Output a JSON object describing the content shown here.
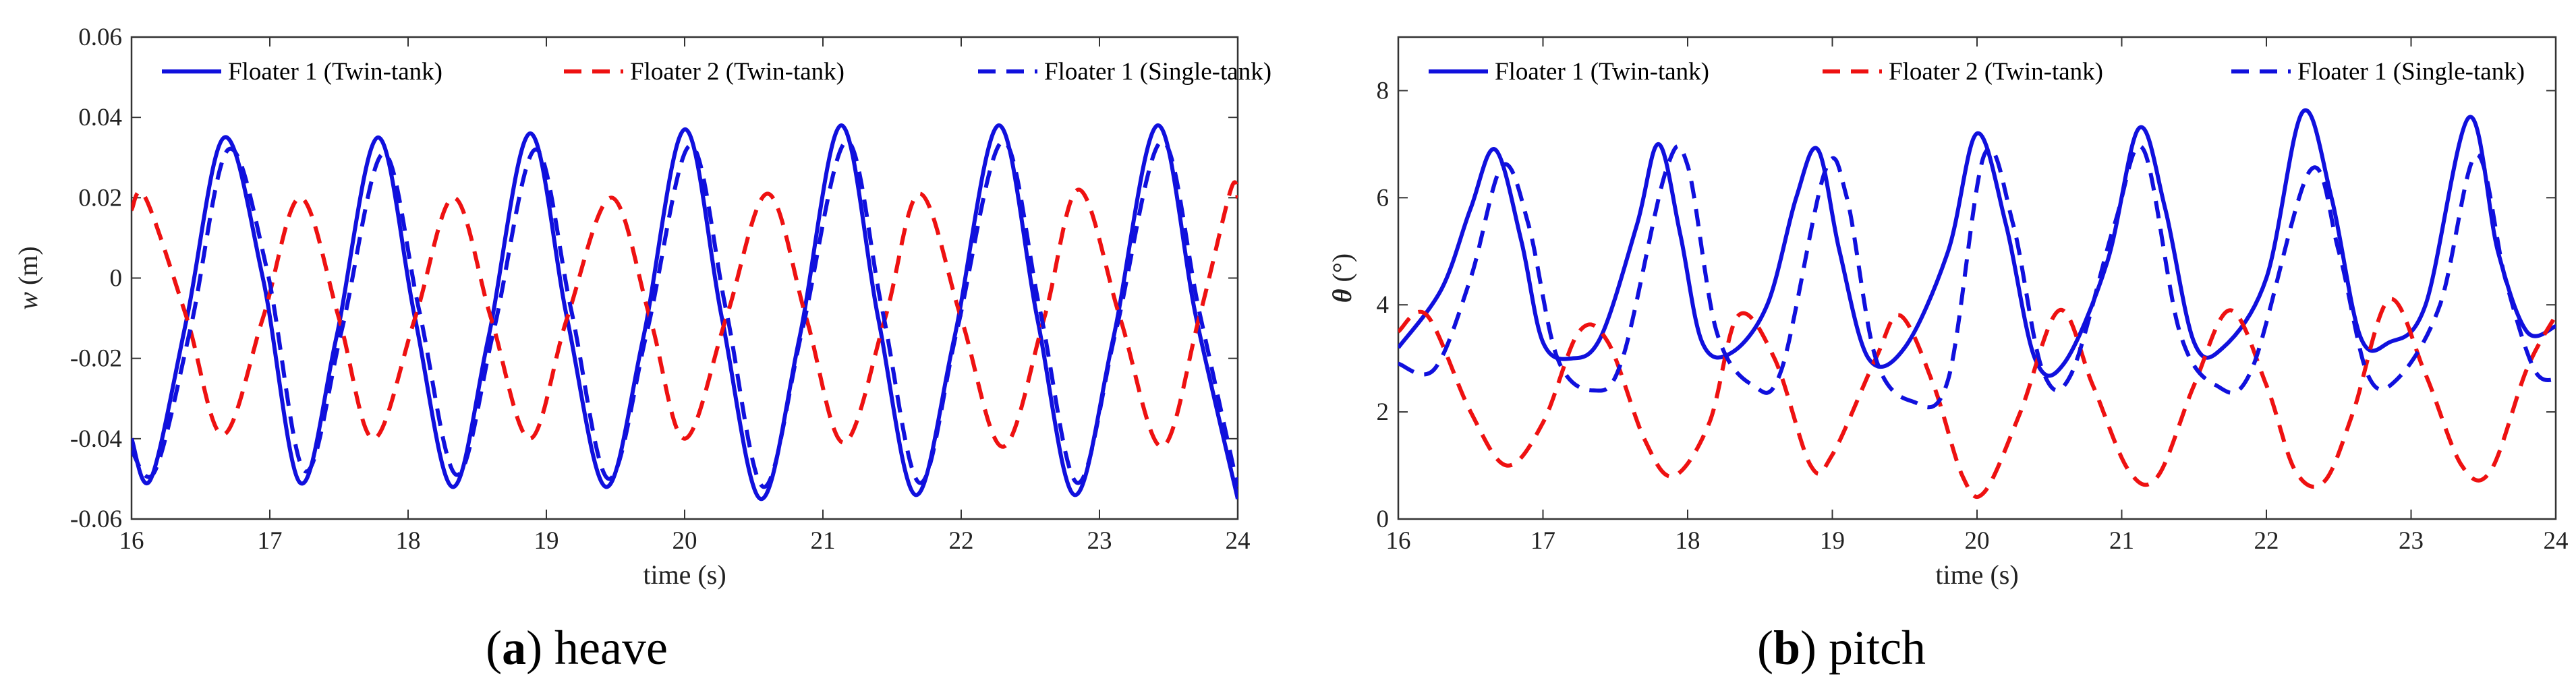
{
  "series_styles": [
    {
      "color": "#1010dd",
      "dash": "solid"
    },
    {
      "color": "#ee1111",
      "dash": "dashed"
    },
    {
      "color": "#1010dd",
      "dash": "dashed"
    }
  ],
  "chart_data": [
    {
      "type": "line",
      "id": "a",
      "caption_letter": "a",
      "caption_text": "heave",
      "xlabel": "time (s)",
      "ylabel_italic": "w",
      "ylabel_unit": "(m)",
      "xlim": [
        16,
        24
      ],
      "ylim": [
        -0.06,
        0.06
      ],
      "xticks": [
        16,
        17,
        18,
        19,
        20,
        21,
        22,
        23,
        24
      ],
      "yticks": [
        -0.06,
        -0.04,
        -0.02,
        0,
        0.02,
        0.04,
        0.06
      ],
      "ytick_labels": [
        "-0.06",
        "-0.04",
        "-0.02",
        "0",
        "0.02",
        "0.04",
        "0.06"
      ],
      "legend": [
        "Floater 1 (Twin-tank)",
        "Floater 2 (Twin-tank)",
        "Floater 1 (Single-tank)"
      ],
      "series": [
        {
          "name": "Floater 1 (Twin-tank)",
          "x": [
            16.0,
            16.14,
            16.4,
            16.67,
            16.95,
            17.22,
            17.48,
            17.78,
            18.05,
            18.32,
            18.58,
            18.88,
            19.15,
            19.43,
            19.7,
            20.0,
            20.27,
            20.55,
            20.83,
            21.13,
            21.4,
            21.67,
            21.95,
            22.27,
            22.55,
            22.82,
            23.1,
            23.42,
            23.7,
            24.0
          ],
          "y": [
            -0.04,
            -0.05,
            -0.01,
            0.035,
            0.0,
            -0.051,
            -0.015,
            0.035,
            -0.01,
            -0.052,
            -0.015,
            0.036,
            -0.01,
            -0.052,
            -0.015,
            0.037,
            -0.01,
            -0.055,
            -0.015,
            0.038,
            -0.01,
            -0.054,
            -0.015,
            0.038,
            -0.01,
            -0.054,
            -0.015,
            0.038,
            -0.01,
            -0.055
          ]
        },
        {
          "name": "Floater 2 (Twin-tank)",
          "x": [
            16.0,
            16.1,
            16.4,
            16.66,
            16.95,
            17.22,
            17.5,
            17.75,
            18.05,
            18.33,
            18.6,
            18.88,
            19.15,
            19.47,
            19.75,
            20.0,
            20.3,
            20.6,
            20.88,
            21.15,
            21.45,
            21.7,
            22.0,
            22.3,
            22.6,
            22.85,
            23.15,
            23.45,
            23.72,
            23.95,
            24.0
          ],
          "y": [
            0.017,
            0.02,
            -0.01,
            -0.039,
            -0.01,
            0.02,
            -0.01,
            -0.04,
            -0.01,
            0.02,
            -0.01,
            -0.04,
            -0.01,
            0.02,
            -0.01,
            -0.04,
            -0.01,
            0.021,
            -0.01,
            -0.041,
            -0.01,
            0.021,
            -0.01,
            -0.042,
            -0.01,
            0.022,
            -0.01,
            -0.042,
            -0.01,
            0.022,
            0.02
          ]
        },
        {
          "name": "Floater 1 (Single-tank)",
          "x": [
            16.0,
            16.17,
            16.43,
            16.7,
            16.98,
            17.25,
            17.52,
            17.82,
            18.08,
            18.35,
            18.62,
            18.92,
            19.18,
            19.45,
            19.73,
            20.04,
            20.3,
            20.57,
            20.85,
            21.17,
            21.43,
            21.7,
            21.97,
            22.3,
            22.57,
            22.84,
            23.12,
            23.45,
            23.72,
            24.0
          ],
          "y": [
            -0.043,
            -0.048,
            -0.012,
            0.032,
            0.002,
            -0.048,
            -0.013,
            0.031,
            -0.008,
            -0.049,
            -0.013,
            0.032,
            -0.008,
            -0.05,
            -0.013,
            0.033,
            -0.008,
            -0.052,
            -0.013,
            0.034,
            -0.008,
            -0.051,
            -0.013,
            0.034,
            -0.008,
            -0.051,
            -0.013,
            0.034,
            -0.008,
            -0.052
          ]
        }
      ]
    },
    {
      "type": "line",
      "id": "b",
      "caption_letter": "b",
      "caption_text": "pitch",
      "xlabel": "time (s)",
      "ylabel_italic": "θ",
      "ylabel_unit": "(°)",
      "xlim": [
        16,
        24
      ],
      "ylim": [
        0,
        9
      ],
      "xticks": [
        16,
        17,
        18,
        19,
        20,
        21,
        22,
        23,
        24
      ],
      "yticks": [
        0,
        2,
        4,
        6,
        8
      ],
      "ytick_labels": [
        "0",
        "2",
        "4",
        "6",
        "8"
      ],
      "legend": [
        "Floater 1 (Twin-tank)",
        "Floater 2 (Twin-tank)",
        "Floater 1 (Single-tank)"
      ],
      "series": [
        {
          "name": "Floater 1 (Twin-tank)",
          "x": [
            16.0,
            16.3,
            16.5,
            16.67,
            16.85,
            17.0,
            17.2,
            17.4,
            17.65,
            17.8,
            17.95,
            18.1,
            18.3,
            18.55,
            18.75,
            18.9,
            19.05,
            19.25,
            19.5,
            19.8,
            20.0,
            20.2,
            20.4,
            20.6,
            20.9,
            21.12,
            21.3,
            21.5,
            21.7,
            22.0,
            22.25,
            22.45,
            22.65,
            22.85,
            23.1,
            23.4,
            23.6,
            23.8,
            24.0
          ],
          "y": [
            3.2,
            4.3,
            5.8,
            6.9,
            5.2,
            3.3,
            3.0,
            3.4,
            5.5,
            7.0,
            5.3,
            3.3,
            3.1,
            4.0,
            6.0,
            6.9,
            5.0,
            3.0,
            3.2,
            5.0,
            7.2,
            5.5,
            3.0,
            2.9,
            4.8,
            7.3,
            5.8,
            3.3,
            3.2,
            4.5,
            7.6,
            6.0,
            3.4,
            3.3,
            4.0,
            7.5,
            5.0,
            3.5,
            3.6
          ]
        },
        {
          "name": "Floater 2 (Twin-tank)",
          "x": [
            16.0,
            16.2,
            16.5,
            16.75,
            17.0,
            17.25,
            17.45,
            17.7,
            17.9,
            18.15,
            18.35,
            18.6,
            18.85,
            19.0,
            19.3,
            19.47,
            19.7,
            19.9,
            20.05,
            20.3,
            20.57,
            20.8,
            21.05,
            21.25,
            21.5,
            21.75,
            22.0,
            22.2,
            22.4,
            22.6,
            22.85,
            23.1,
            23.35,
            23.55,
            23.8,
            24.0
          ],
          "y": [
            3.5,
            3.8,
            2.0,
            1.0,
            1.8,
            3.5,
            3.3,
            1.5,
            0.8,
            1.8,
            3.8,
            3.0,
            1.0,
            1.2,
            3.0,
            3.8,
            2.5,
            0.8,
            0.5,
            2.0,
            3.9,
            2.5,
            0.9,
            0.8,
            2.5,
            3.9,
            2.5,
            0.9,
            0.7,
            2.0,
            4.1,
            2.7,
            1.0,
            0.9,
            2.8,
            3.8
          ]
        },
        {
          "name": "Floater 1 (Single-tank)",
          "x": [
            16.0,
            16.25,
            16.5,
            16.72,
            16.9,
            17.1,
            17.35,
            17.55,
            17.85,
            18.0,
            18.2,
            18.45,
            18.65,
            18.95,
            19.1,
            19.3,
            19.55,
            19.8,
            20.05,
            20.25,
            20.45,
            20.65,
            20.95,
            21.15,
            21.4,
            21.65,
            21.9,
            22.3,
            22.5,
            22.7,
            22.9,
            23.2,
            23.45,
            23.65,
            23.85,
            24.0
          ],
          "y": [
            2.9,
            2.8,
            4.5,
            6.6,
            5.5,
            3.0,
            2.4,
            3.0,
            6.5,
            6.6,
            3.5,
            2.5,
            2.8,
            6.5,
            6.0,
            3.0,
            2.2,
            2.6,
            6.8,
            5.5,
            2.8,
            2.7,
            5.5,
            6.9,
            3.5,
            2.5,
            2.8,
            6.5,
            5.0,
            2.7,
            2.6,
            4.0,
            6.8,
            4.5,
            2.8,
            2.6
          ]
        }
      ]
    }
  ]
}
